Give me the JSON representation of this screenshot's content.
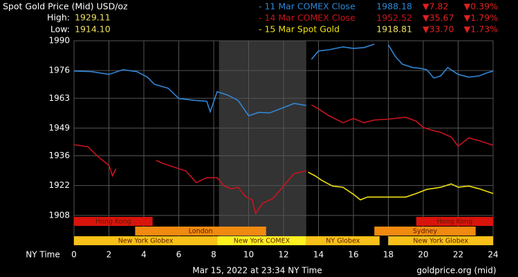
{
  "chart_data": {
    "type": "line",
    "title": "Spot Gold Price (Mid) USD/oz",
    "high_label": "High:",
    "high": "1929.11",
    "low_label": "Low:",
    "low": "1914.10",
    "xlabel": "NY Time",
    "timestamp": "Mar 15, 2022 at 23:34 NY Time",
    "source": "goldprice.org (mid)",
    "xlim": [
      0,
      24
    ],
    "xticks": [
      0,
      2,
      4,
      6,
      8,
      10,
      12,
      14,
      16,
      18,
      20,
      22,
      24
    ],
    "ylim": [
      1894,
      1990
    ],
    "yticks": [
      1990,
      1976,
      1963,
      1949,
      1936,
      1922,
      1908
    ],
    "grid": true,
    "highlight": {
      "range": [
        8.3,
        13.3
      ],
      "color": "#333333"
    },
    "series": [
      {
        "name": "- 11 Mar COMEX Close",
        "close": "1988.18",
        "change": "▼7.82",
        "change_pct": "▼0.39%",
        "color": "#2f87d8",
        "x": [
          0,
          1,
          2,
          2.8,
          3.6,
          4.2,
          4.6,
          5.4,
          6,
          7,
          7.6,
          7.8,
          8.2,
          8.8,
          9.4,
          10,
          10.6,
          11.2,
          12,
          12.6,
          13.3,
          13.45,
          13.6,
          14,
          14.6,
          15.4,
          16,
          16.6,
          17.2,
          17.6,
          18,
          18.4,
          18.8,
          19.4,
          19.8,
          20.2,
          20.6,
          21,
          21.4,
          22,
          22.6,
          23.2,
          23.6,
          24
        ],
        "values": [
          1975.8,
          1975.5,
          1974.2,
          1976.4,
          1975.5,
          1972.9,
          1969.6,
          1967.7,
          1962.9,
          1961.9,
          1961.6,
          1956.7,
          1966.1,
          1964.5,
          1961.9,
          1954.8,
          1956.4,
          1956.1,
          1958.6,
          1960.6,
          1959.6,
          null,
          1981.3,
          1985.2,
          1985.8,
          1987.1,
          1986.4,
          1986.8,
          1988.4,
          null,
          1988.1,
          1982.6,
          1979.0,
          1977.4,
          1977.1,
          1976.4,
          1972.5,
          1973.5,
          1977.4,
          1974.2,
          1972.9,
          1973.5,
          1974.8,
          1975.8
        ]
      },
      {
        "name": "- 14 Mar COMEX Close",
        "close": "1952.52",
        "change": "▼35.67",
        "change_pct": "▼1.79%",
        "color": "#c8141e",
        "x": [
          0,
          0.8,
          1.4,
          2,
          2.2,
          2.4,
          3.5,
          4.7,
          5.2,
          5.8,
          6.4,
          7,
          7.6,
          8.2,
          8.6,
          9,
          9.4,
          9.8,
          10.2,
          10.4,
          10.8,
          11.4,
          12,
          12.6,
          13.3,
          13.45,
          13.6,
          14,
          14.6,
          15.4,
          16,
          16.6,
          17.2,
          18,
          19,
          19.6,
          20,
          20.6,
          21,
          21.6,
          22,
          22.6,
          23.2,
          24
        ],
        "values": [
          1941.2,
          1940.2,
          1935.4,
          1931.5,
          1926.6,
          1929.9,
          null,
          1933.8,
          1932.1,
          1930.5,
          1928.9,
          1923.4,
          1925.7,
          1925.7,
          1921.8,
          1920.5,
          1921.2,
          1917.0,
          1915.3,
          1908.9,
          1913.7,
          1916.0,
          1921.8,
          1927.6,
          1928.9,
          null,
          1959.9,
          1958.0,
          1954.8,
          1951.5,
          1953.5,
          1951.5,
          1952.8,
          1953.2,
          1954.1,
          1952.2,
          1949.3,
          1947.7,
          1947.0,
          1944.8,
          1940.5,
          1944.4,
          1943.1,
          1940.9
        ]
      },
      {
        "name": "- 15 Mar Spot Gold",
        "close": "1918.81",
        "change": "▼33.70",
        "change_pct": "▼1.73%",
        "color": "#f0e010",
        "x": [
          13.4,
          13.8,
          14.2,
          14.8,
          15.4,
          16,
          16.4,
          16.8,
          17.4,
          18,
          19,
          19.6,
          20.2,
          21,
          21.6,
          22,
          22.6,
          23.2,
          24
        ],
        "values": [
          1928.3,
          1926.6,
          1924.4,
          1921.8,
          1921.2,
          1917.9,
          1915.3,
          1916.6,
          1916.6,
          1916.6,
          1916.6,
          1918.3,
          1920.2,
          1921.2,
          1922.8,
          1921.2,
          1921.8,
          1920.5,
          1918.3
        ]
      }
    ],
    "session_lanes": [
      [
        {
          "label": "Hong Kong",
          "start": 0,
          "end": 4.5,
          "color": "#d8140c"
        },
        {
          "label": "Hong Kong",
          "start": 19.6,
          "end": 24,
          "color": "#d8140c"
        }
      ],
      [
        {
          "label": "London",
          "start": 3.5,
          "end": 11,
          "color": "#f08a10"
        },
        {
          "label": "Sydney",
          "start": 17.2,
          "end": 23,
          "color": "#f08a10"
        }
      ],
      [
        {
          "label": "New York Globex",
          "start": 0,
          "end": 8.2,
          "color": "#f8c018"
        },
        {
          "label": "New York COMEX",
          "start": 8.2,
          "end": 13.3,
          "color": "#fff020"
        },
        {
          "label": "NY Globex",
          "start": 13.3,
          "end": 17.5,
          "color": "#f8c018"
        },
        {
          "label": "New York Globex",
          "start": 18,
          "end": 24,
          "color": "#f8c018"
        }
      ]
    ]
  }
}
